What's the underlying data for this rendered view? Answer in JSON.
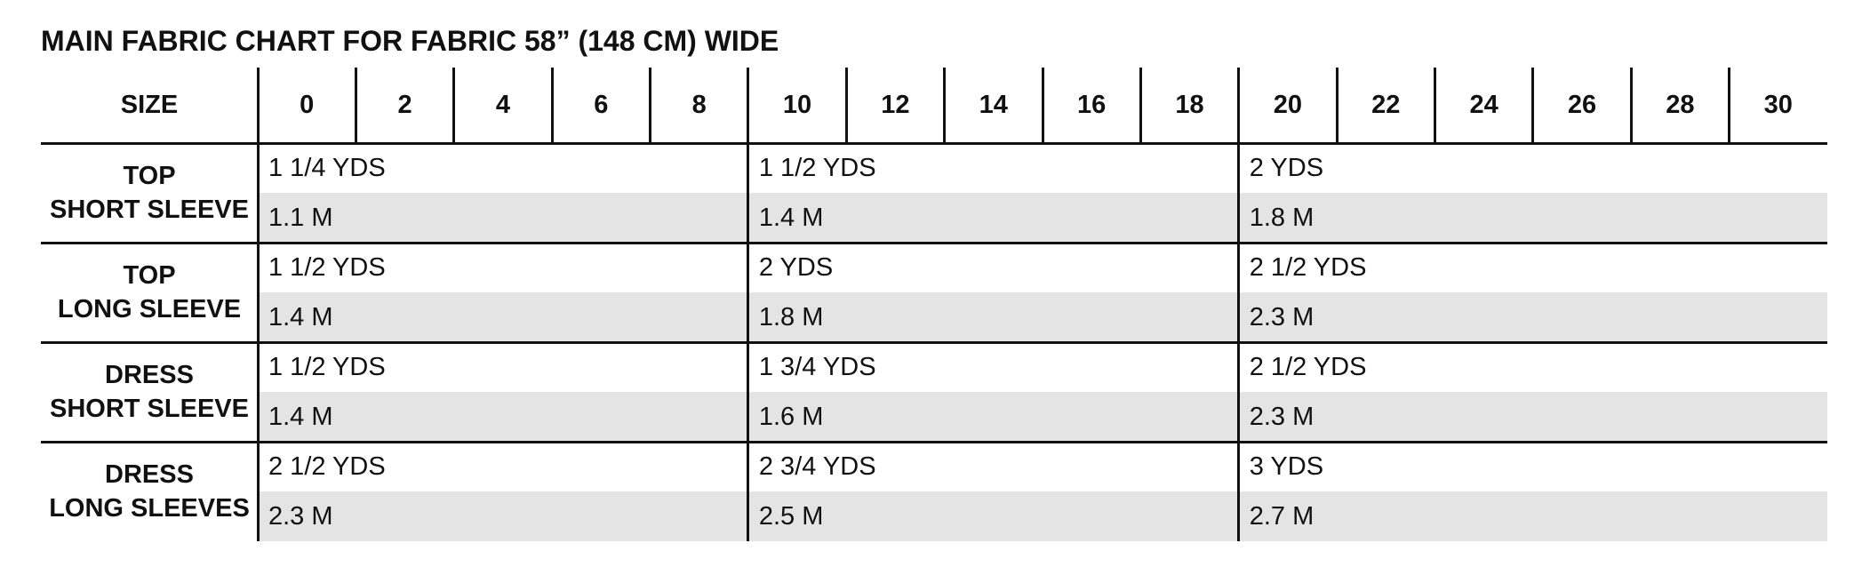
{
  "title": "MAIN FABRIC CHART FOR FABRIC 58” (148 CM) WIDE",
  "header": {
    "size_label": "SIZE",
    "sizes": [
      "0",
      "2",
      "4",
      "6",
      "8",
      "10",
      "12",
      "14",
      "16",
      "18",
      "20",
      "22",
      "24",
      "26",
      "28",
      "30"
    ]
  },
  "rows": [
    {
      "line1": "TOP",
      "line2": "SHORT SLEEVE",
      "groups": [
        {
          "yds": "1 1/4 YDS",
          "m": "1.1 M"
        },
        {
          "yds": "1 1/2 YDS",
          "m": "1.4 M"
        },
        {
          "yds": "2 YDS",
          "m": "1.8 M"
        }
      ]
    },
    {
      "line1": "TOP",
      "line2": "LONG SLEEVE",
      "groups": [
        {
          "yds": "1 1/2 YDS",
          "m": "1.4 M"
        },
        {
          "yds": "2 YDS",
          "m": "1.8 M"
        },
        {
          "yds": "2 1/2 YDS",
          "m": "2.3 M"
        }
      ]
    },
    {
      "line1": "DRESS",
      "line2": "SHORT SLEEVE",
      "groups": [
        {
          "yds": "1 1/2 YDS",
          "m": "1.4 M"
        },
        {
          "yds": "1 3/4 YDS",
          "m": "1.6 M"
        },
        {
          "yds": "2 1/2 YDS",
          "m": "2.3 M"
        }
      ]
    },
    {
      "line1": "DRESS",
      "line2": "LONG SLEEVES",
      "groups": [
        {
          "yds": "2 1/2 YDS",
          "m": "2.3 M"
        },
        {
          "yds": "2 3/4 YDS",
          "m": "2.5 M"
        },
        {
          "yds": "3 YDS",
          "m": "2.7 M"
        }
      ]
    }
  ],
  "colors": {
    "shade": "#e4e4e4",
    "line": "#111111"
  }
}
